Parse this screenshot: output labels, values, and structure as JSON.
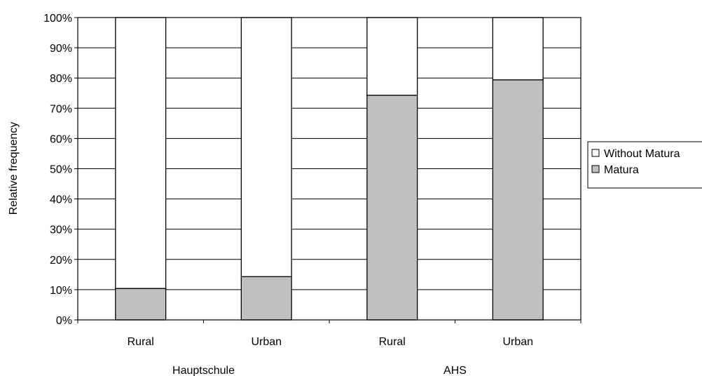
{
  "chart_data": {
    "type": "bar",
    "stacked": true,
    "title": "",
    "ylabel": "Relative frequency",
    "ylim": [
      0,
      100
    ],
    "ytick_step": 10,
    "ytick_suffix": "%",
    "grid": true,
    "legend_position": "right",
    "categories": [
      "Rural",
      "Urban",
      "Rural",
      "Urban"
    ],
    "groups": [
      {
        "label": "Hauptschule",
        "categories": [
          0,
          1
        ]
      },
      {
        "label": "AHS",
        "categories": [
          2,
          3
        ]
      }
    ],
    "series": [
      {
        "name": "Matura",
        "values": [
          10.4,
          14.3,
          74.3,
          79.4
        ],
        "color": "#c0c0c0"
      },
      {
        "name": "Without Matura",
        "values": [
          89.6,
          85.7,
          25.7,
          20.6
        ],
        "color": "#ffffff"
      }
    ]
  }
}
